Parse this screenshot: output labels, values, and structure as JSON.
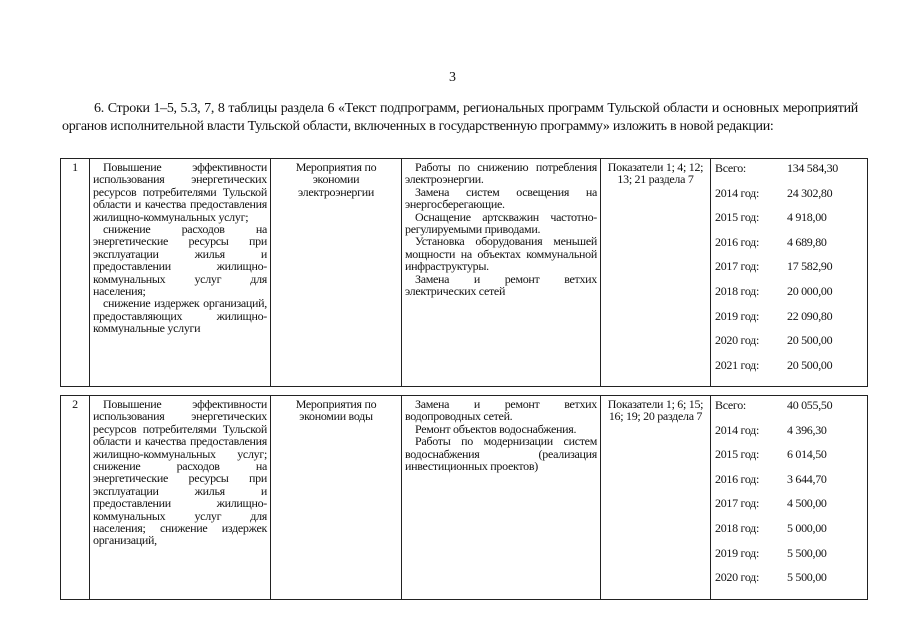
{
  "page_number": "3",
  "intro": "6. Строки 1–5, 5.3, 7, 8 таблицы раздела 6 «Текст подпрограмм, региональных программ Тульской области и основных мероприятий органов исполнительной власти Тульской области, включенных в государственную программу» изложить в новой редакции:",
  "rows": [
    {
      "num": "1",
      "goals": [
        "Повышение эффективности использования энергетических ресурсов потребителями Тульской области и качества предоставления жилищно-коммунальных услуг;",
        "снижение расходов на энергетические ресурсы при эксплуатации жилья и предоставлении жилищно-коммунальных услуг для населения;",
        "снижение издержек организаций, предоставляющих жилищно-коммунальные услуги"
      ],
      "activity": "Мероприятия по экономии электроэнергии",
      "works": [
        "Работы по снижению потребления электроэнергии.",
        "Замена систем освещения на энергосберегающие.",
        "Оснащение артскважин частотно-регулируемыми приводами.",
        "Установка оборудования меньшей мощности на объектах коммунальной инфраструктуры.",
        "Замена и ремонт ветхих электрических сетей"
      ],
      "indicators": "Показатели 1; 4; 12; 13; 21 раздела 7",
      "funding": [
        {
          "label": "Всего:",
          "value": "134 584,30"
        },
        {
          "label": "2014 год:",
          "value": "24 302,80"
        },
        {
          "label": "2015 год:",
          "value": "4 918,00"
        },
        {
          "label": "2016 год:",
          "value": "4 689,80"
        },
        {
          "label": "2017 год:",
          "value": "17 582,90"
        },
        {
          "label": "2018 год:",
          "value": "20 000,00"
        },
        {
          "label": "2019 год:",
          "value": "22 090,80"
        },
        {
          "label": "2020 год:",
          "value": "20 500,00"
        },
        {
          "label": "2021 год:",
          "value": "20 500,00"
        }
      ]
    },
    {
      "num": "2",
      "goals": [
        "Повышение эффективности использования энергетических ресурсов потребителями Тульской области и качества предоставления жилищно-коммунальных услуг; снижение расходов на энергетические ресурсы при эксплуатации жилья и предоставлении жилищно-коммунальных услуг для населения; снижение издержек организаций,"
      ],
      "activity": "Мероприятия по экономии воды",
      "works": [
        "Замена и ремонт ветхих водопроводных сетей.",
        "Ремонт объектов водоснабжения.",
        "Работы по модернизации систем водоснабжения (реализация инвестиционных проектов)"
      ],
      "indicators": "Показатели 1; 6; 15; 16; 19; 20 раздела 7",
      "funding": [
        {
          "label": "Всего:",
          "value": "40 055,50"
        },
        {
          "label": "2014 год:",
          "value": "4 396,30"
        },
        {
          "label": "2015 год:",
          "value": "6 014,50"
        },
        {
          "label": "2016 год:",
          "value": "3 644,70"
        },
        {
          "label": "2017 год:",
          "value": "4 500,00"
        },
        {
          "label": "2018 год:",
          "value": "5 000,00"
        },
        {
          "label": "2019 год:",
          "value": "5 500,00"
        },
        {
          "label": "2020 год:",
          "value": "5 500,00"
        }
      ]
    }
  ]
}
